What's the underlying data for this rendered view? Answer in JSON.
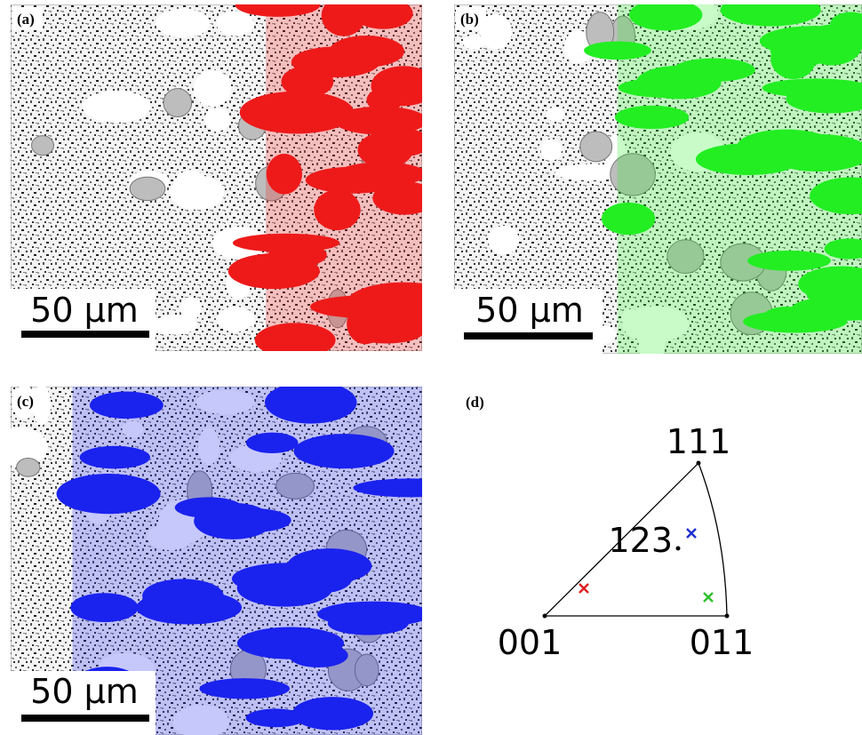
{
  "panels": [
    {
      "label": "(a)",
      "scale_bar": "50 μm"
    },
    {
      "label": "(b)",
      "scale_bar": "50 μm"
    },
    {
      "label": "(c)",
      "scale_bar": "50 μm"
    }
  ],
  "pole_figure": {
    "label": "(d)",
    "top": "111",
    "left": "001",
    "right": "011",
    "point": "123"
  }
}
